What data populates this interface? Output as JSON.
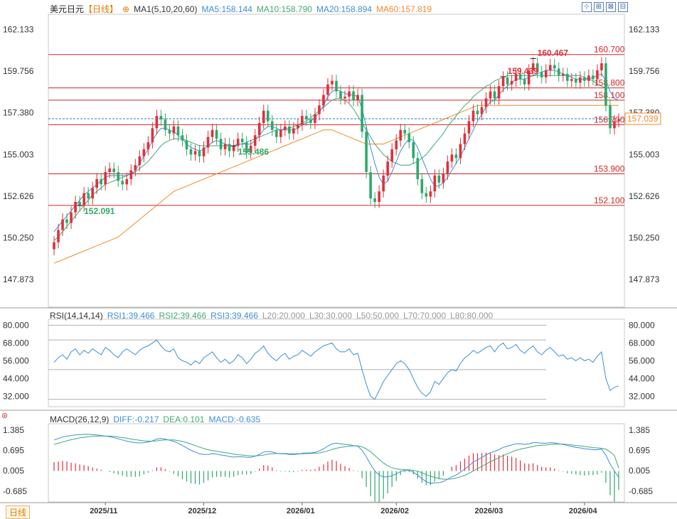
{
  "header": {
    "symbol": "美元日元",
    "period": "【日线】",
    "ma_label": "MA1(5,10,20,60)",
    "ma5": "MA5:158.144",
    "ma10": "MA10:158.790",
    "ma20": "MA20:158.894",
    "ma60": "MA60:157.819"
  },
  "rsi_header": {
    "label": "RSI(14,14,14)",
    "rsi1": "RSI1:39.466",
    "rsi2": "RSI2:39.466",
    "rsi3": "RSI3:39.466",
    "l20": "L20:20.000",
    "l30": "L30:30.000",
    "l50": "L50:50.000",
    "l70": "L70:70.000",
    "l80": "L80:80.000"
  },
  "macd_header": {
    "label": "MACD(26,12,9)",
    "diff": "DIFF:-0.217",
    "dea": "DEA:0.101",
    "macd": "MACD:-0.635"
  },
  "period_tag": "日线",
  "colors": {
    "up": "#e0303a",
    "down": "#2fa86a",
    "ma5": "#3a8fd8",
    "ma10": "#3fa878",
    "ma20": "#3a8fd8",
    "ma60": "#f08a2a",
    "level": "#d42424"
  },
  "chart_data": [
    {
      "type": "candlestick",
      "title": "美元日元",
      "ylim": [
        146.3,
        163.0
      ],
      "y_ticks": [
        "162.133",
        "159.756",
        "157.380",
        "155.003",
        "152.626",
        "150.250",
        "147.873"
      ],
      "x_ticks": [
        "2025/11",
        "2025/12",
        "2026/01",
        "2026/02",
        "2026/03",
        "2026/04"
      ],
      "horizontal_levels": [
        160.7,
        158.8,
        158.1,
        156.7,
        153.9,
        152.1
      ],
      "level_labels": [
        "160.700",
        "158.800",
        "158.100",
        "156.700",
        "153.900",
        "152.100"
      ],
      "current_price": "157.039",
      "annotations": [
        {
          "label": "159.439",
          "value": 159.439
        },
        {
          "label": "152.091",
          "value": 152.091
        },
        {
          "label": "160.467",
          "value": 160.467
        },
        {
          "label": "155.486",
          "value": 155.486
        }
      ],
      "close": [
        150.0,
        150.7,
        151.3,
        151.1,
        151.7,
        152.3,
        152.1,
        152.8,
        152.5,
        153.1,
        153.6,
        153.3,
        154.0,
        154.2,
        154.0,
        153.5,
        153.3,
        153.6,
        154.1,
        154.4,
        154.9,
        155.3,
        155.7,
        156.5,
        157.2,
        157.0,
        156.4,
        156.2,
        156.6,
        156.1,
        155.8,
        155.3,
        155.0,
        155.2,
        154.9,
        155.4,
        156.0,
        156.4,
        155.9,
        155.3,
        155.6,
        155.2,
        155.5,
        155.9,
        155.7,
        155.1,
        155.5,
        156.1,
        156.8,
        157.5,
        156.9,
        156.4,
        156.0,
        156.4,
        156.6,
        156.2,
        156.5,
        156.7,
        157.2,
        157.0,
        156.8,
        157.3,
        157.8,
        158.4,
        159.0,
        159.2,
        158.6,
        158.2,
        158.3,
        158.6,
        158.1,
        158.4,
        156.3,
        154.0,
        152.5,
        152.3,
        152.9,
        153.8,
        154.6,
        155.3,
        155.8,
        156.4,
        156.2,
        155.7,
        154.8,
        153.6,
        152.8,
        152.6,
        152.9,
        153.8,
        153.4,
        153.9,
        154.6,
        155.0,
        154.8,
        155.6,
        156.2,
        156.9,
        157.5,
        157.3,
        157.7,
        158.2,
        158.6,
        158.2,
        158.9,
        159.4,
        159.0,
        159.2,
        159.6,
        159.3,
        159.0,
        159.8,
        160.2,
        159.7,
        159.4,
        159.8,
        160.1,
        159.9,
        159.5,
        159.6,
        159.2,
        159.3,
        159.1,
        159.4,
        159.2,
        159.5,
        159.3,
        159.8,
        160.2,
        157.8,
        156.5,
        156.9,
        157.0
      ],
      "open": [
        149.6,
        150.0,
        150.7,
        151.3,
        151.1,
        151.7,
        152.3,
        152.1,
        152.8,
        152.5,
        153.1,
        153.6,
        153.3,
        154.0,
        154.2,
        154.0,
        153.5,
        153.3,
        153.6,
        154.1,
        154.4,
        154.9,
        155.3,
        155.7,
        156.5,
        157.2,
        157.0,
        156.4,
        156.2,
        156.6,
        156.1,
        155.8,
        155.3,
        155.0,
        155.2,
        154.9,
        155.4,
        156.0,
        156.4,
        155.9,
        155.3,
        155.6,
        155.2,
        155.5,
        155.9,
        155.7,
        155.1,
        155.5,
        156.1,
        156.8,
        157.5,
        156.9,
        156.4,
        156.0,
        156.4,
        156.6,
        156.2,
        156.5,
        156.7,
        157.2,
        157.0,
        156.8,
        157.3,
        157.8,
        158.4,
        159.0,
        159.2,
        158.6,
        158.2,
        158.3,
        158.6,
        158.1,
        158.4,
        156.3,
        154.0,
        152.5,
        152.3,
        152.9,
        153.8,
        154.6,
        155.3,
        155.8,
        156.4,
        156.2,
        155.7,
        154.8,
        153.6,
        152.8,
        152.6,
        152.9,
        153.8,
        153.4,
        153.9,
        154.6,
        155.0,
        154.8,
        155.6,
        156.2,
        156.9,
        157.5,
        157.3,
        157.7,
        158.2,
        158.6,
        158.2,
        158.9,
        159.4,
        159.0,
        159.2,
        159.6,
        159.3,
        159.0,
        159.8,
        160.2,
        159.7,
        159.4,
        159.8,
        160.1,
        159.9,
        159.5,
        159.6,
        159.2,
        159.3,
        159.1,
        159.4,
        159.2,
        159.5,
        159.3,
        159.8,
        160.2,
        157.8,
        156.5,
        156.9
      ],
      "ma5": [
        150.6,
        150.9,
        151.2,
        151.5,
        151.8,
        152.1,
        152.4,
        152.7,
        152.9,
        153.1,
        153.3,
        153.5,
        153.7,
        153.8,
        153.8,
        153.8,
        153.8,
        153.8,
        153.9,
        154.1,
        154.5,
        154.9,
        155.3,
        155.8,
        156.2,
        156.5,
        156.5,
        156.4,
        156.3,
        156.1,
        155.9,
        155.6,
        155.4,
        155.3,
        155.2,
        155.3,
        155.5,
        155.7,
        155.8,
        155.7,
        155.6,
        155.5,
        155.5,
        155.6,
        155.6,
        155.6,
        155.6,
        155.8,
        156.1,
        156.4,
        156.6,
        156.6,
        156.5,
        156.4,
        156.4,
        156.4,
        156.4,
        156.5,
        156.7,
        156.8,
        156.9,
        157.1,
        157.4,
        157.8,
        158.3,
        158.6,
        158.7,
        158.6,
        158.5,
        158.4,
        158.4,
        158.3,
        157.6,
        156.6,
        155.4,
        154.5,
        153.7,
        153.3,
        153.5,
        154.0,
        154.6,
        155.2,
        155.6,
        155.9,
        155.8,
        155.4,
        154.8,
        154.2,
        153.6,
        153.2,
        153.2,
        153.4,
        153.7,
        154.1,
        154.5,
        154.9,
        155.4,
        155.9,
        156.4,
        156.9,
        157.3,
        157.7,
        158.0,
        158.1,
        158.4,
        158.7,
        158.9,
        159.1,
        159.3,
        159.3,
        159.3,
        159.4,
        159.5,
        159.6,
        159.7,
        159.8,
        159.8,
        159.8,
        159.7,
        159.6,
        159.5,
        159.4,
        159.3,
        159.3,
        159.3,
        159.3,
        159.4,
        159.5,
        159.6,
        159.2,
        158.6,
        158.2,
        158.1
      ],
      "ma10": [
        150.1,
        150.3,
        150.6,
        150.9,
        151.2,
        151.5,
        151.8,
        152.1,
        152.4,
        152.7,
        152.9,
        153.1,
        153.3,
        153.4,
        153.5,
        153.6,
        153.7,
        153.8,
        153.9,
        154.0,
        154.2,
        154.4,
        154.6,
        154.9,
        155.2,
        155.5,
        155.7,
        155.8,
        155.9,
        155.9,
        155.9,
        155.8,
        155.7,
        155.6,
        155.5,
        155.5,
        155.5,
        155.5,
        155.5,
        155.5,
        155.5,
        155.5,
        155.5,
        155.6,
        155.6,
        155.7,
        155.8,
        155.9,
        156.0,
        156.1,
        156.2,
        156.3,
        156.4,
        156.4,
        156.5,
        156.5,
        156.6,
        156.7,
        156.8,
        156.9,
        157.1,
        157.3,
        157.5,
        157.7,
        157.9,
        158.1,
        158.2,
        158.2,
        158.1,
        157.9,
        157.6,
        157.2,
        156.8,
        156.4,
        156.0,
        155.6,
        155.3,
        155.0,
        154.8,
        154.6,
        154.5,
        154.4,
        154.4,
        154.4,
        154.5,
        154.6,
        154.8,
        155.0,
        155.3,
        155.6,
        155.9,
        156.2,
        156.6,
        156.9,
        157.2,
        157.5,
        157.8,
        158.0,
        158.3,
        158.5,
        158.7,
        158.9,
        159.0,
        159.2,
        159.3,
        159.4,
        159.5,
        159.5,
        159.5,
        159.5,
        159.5,
        159.5,
        159.5,
        159.5,
        159.5,
        159.5,
        159.5,
        159.5,
        159.5,
        159.5,
        159.5,
        159.5,
        159.5,
        159.5,
        159.4,
        159.3,
        159.2,
        159.0,
        158.9,
        158.8,
        158.8
      ],
      "ma60": [
        148.8,
        148.9,
        149.0,
        149.1,
        149.2,
        149.3,
        149.4,
        149.5,
        149.6,
        149.7,
        149.8,
        149.9,
        150.0,
        150.1,
        150.2,
        150.3,
        150.5,
        150.7,
        150.9,
        151.1,
        151.3,
        151.5,
        151.7,
        151.9,
        152.1,
        152.3,
        152.5,
        152.7,
        152.9,
        153.0,
        153.1,
        153.2,
        153.3,
        153.4,
        153.5,
        153.6,
        153.7,
        153.8,
        153.9,
        154.0,
        154.1,
        154.2,
        154.3,
        154.4,
        154.5,
        154.6,
        154.7,
        154.8,
        154.9,
        155.0,
        155.1,
        155.2,
        155.3,
        155.4,
        155.5,
        155.6,
        155.7,
        155.8,
        155.9,
        156.0,
        156.1,
        156.2,
        156.3,
        156.4,
        156.4,
        156.4,
        156.3,
        156.2,
        156.1,
        156.0,
        155.9,
        155.8,
        155.7,
        155.6,
        155.6,
        155.6,
        155.6,
        155.6,
        155.7,
        155.8,
        155.9,
        156.0,
        156.1,
        156.2,
        156.3,
        156.4,
        156.5,
        156.6,
        156.7,
        156.8,
        156.9,
        157.0,
        157.1,
        157.2,
        157.3,
        157.4,
        157.5,
        157.6,
        157.7,
        157.8,
        157.8,
        157.8,
        157.8,
        157.8,
        157.8,
        157.8,
        157.8,
        157.8,
        157.8,
        157.8,
        157.8,
        157.8,
        157.8,
        157.8,
        157.8,
        157.8,
        157.8,
        157.8,
        157.8,
        157.8,
        157.8,
        157.8,
        157.8,
        157.8,
        157.8,
        157.8,
        157.8,
        157.8,
        157.8,
        157.8,
        157.8,
        157.8,
        157.8
      ]
    },
    {
      "type": "line",
      "title": "RSI(14,14,14)",
      "ylim": [
        25.0,
        84.0
      ],
      "y_ticks": [
        "80.000",
        "68.000",
        "56.000",
        "44.000",
        "32.000"
      ],
      "reference_lines": [
        80,
        70,
        50,
        30,
        20
      ],
      "values": [
        55,
        58,
        60,
        57,
        62,
        64,
        60,
        63,
        61,
        64,
        62,
        60,
        65,
        63,
        60,
        58,
        62,
        64,
        62,
        60,
        63,
        65,
        66,
        68,
        70,
        66,
        63,
        62,
        64,
        58,
        56,
        55,
        53,
        56,
        54,
        58,
        60,
        62,
        58,
        55,
        57,
        54,
        56,
        60,
        58,
        54,
        57,
        61,
        63,
        66,
        61,
        58,
        56,
        59,
        61,
        57,
        59,
        60,
        63,
        61,
        59,
        62,
        64,
        66,
        67,
        68,
        64,
        62,
        62,
        64,
        60,
        61,
        50,
        40,
        32,
        30,
        36,
        42,
        46,
        50,
        54,
        56,
        54,
        50,
        44,
        38,
        34,
        32,
        35,
        42,
        40,
        44,
        48,
        50,
        49,
        54,
        58,
        60,
        63,
        61,
        63,
        65,
        66,
        62,
        66,
        68,
        64,
        65,
        67,
        63,
        61,
        64,
        66,
        62,
        60,
        63,
        65,
        62,
        59,
        60,
        57,
        58,
        56,
        58,
        56,
        57,
        55,
        59,
        62,
        44,
        36,
        38,
        39
      ]
    },
    {
      "type": "bar",
      "title": "MACD(26,12,9)",
      "ylim": [
        -1.05,
        1.6
      ],
      "y_ticks": [
        "1.385",
        "0.695",
        "0.005",
        "-0.685"
      ],
      "diff": [
        1.05,
        1.1,
        1.15,
        1.18,
        1.2,
        1.22,
        1.23,
        1.24,
        1.24,
        1.23,
        1.22,
        1.2,
        1.18,
        1.16,
        1.13,
        1.09,
        1.05,
        1.01,
        0.98,
        0.96,
        0.95,
        0.96,
        0.98,
        1.02,
        1.08,
        1.1,
        1.08,
        1.04,
        1.0,
        0.94,
        0.86,
        0.78,
        0.7,
        0.64,
        0.58,
        0.56,
        0.56,
        0.58,
        0.57,
        0.54,
        0.52,
        0.49,
        0.47,
        0.48,
        0.48,
        0.46,
        0.46,
        0.5,
        0.56,
        0.64,
        0.66,
        0.64,
        0.6,
        0.58,
        0.58,
        0.56,
        0.56,
        0.57,
        0.6,
        0.61,
        0.61,
        0.63,
        0.68,
        0.75,
        0.84,
        0.92,
        0.94,
        0.92,
        0.9,
        0.89,
        0.86,
        0.84,
        0.7,
        0.48,
        0.22,
        0.0,
        -0.14,
        -0.2,
        -0.2,
        -0.16,
        -0.1,
        -0.02,
        0.02,
        0.02,
        -0.04,
        -0.14,
        -0.26,
        -0.36,
        -0.42,
        -0.4,
        -0.4,
        -0.36,
        -0.28,
        -0.2,
        -0.14,
        -0.04,
        0.06,
        0.18,
        0.3,
        0.38,
        0.46,
        0.54,
        0.62,
        0.66,
        0.72,
        0.8,
        0.84,
        0.88,
        0.92,
        0.92,
        0.9,
        0.92,
        0.96,
        0.96,
        0.94,
        0.94,
        0.96,
        0.95,
        0.92,
        0.9,
        0.86,
        0.83,
        0.8,
        0.78,
        0.75,
        0.74,
        0.72,
        0.72,
        0.74,
        0.54,
        0.24,
        0.0,
        -0.22
      ],
      "dea": [
        0.9,
        0.94,
        0.98,
        1.02,
        1.06,
        1.09,
        1.12,
        1.14,
        1.16,
        1.17,
        1.18,
        1.18,
        1.18,
        1.18,
        1.17,
        1.15,
        1.13,
        1.11,
        1.08,
        1.06,
        1.04,
        1.02,
        1.01,
        1.01,
        1.02,
        1.04,
        1.05,
        1.05,
        1.05,
        1.03,
        1.0,
        0.96,
        0.91,
        0.86,
        0.81,
        0.76,
        0.72,
        0.69,
        0.67,
        0.64,
        0.62,
        0.6,
        0.57,
        0.55,
        0.54,
        0.52,
        0.51,
        0.51,
        0.52,
        0.54,
        0.57,
        0.58,
        0.59,
        0.59,
        0.59,
        0.58,
        0.58,
        0.58,
        0.58,
        0.59,
        0.59,
        0.6,
        0.61,
        0.64,
        0.68,
        0.73,
        0.77,
        0.8,
        0.82,
        0.84,
        0.85,
        0.85,
        0.82,
        0.75,
        0.65,
        0.52,
        0.39,
        0.27,
        0.18,
        0.11,
        0.07,
        0.05,
        0.04,
        0.04,
        0.02,
        -0.01,
        -0.06,
        -0.12,
        -0.18,
        -0.22,
        -0.26,
        -0.28,
        -0.28,
        -0.27,
        -0.24,
        -0.2,
        -0.15,
        -0.08,
        0.0,
        0.08,
        0.16,
        0.23,
        0.31,
        0.38,
        0.45,
        0.52,
        0.58,
        0.64,
        0.7,
        0.74,
        0.77,
        0.8,
        0.83,
        0.86,
        0.87,
        0.88,
        0.9,
        0.91,
        0.91,
        0.91,
        0.9,
        0.88,
        0.86,
        0.85,
        0.83,
        0.81,
        0.79,
        0.78,
        0.77,
        0.74,
        0.65,
        0.52,
        0.1
      ]
    }
  ]
}
